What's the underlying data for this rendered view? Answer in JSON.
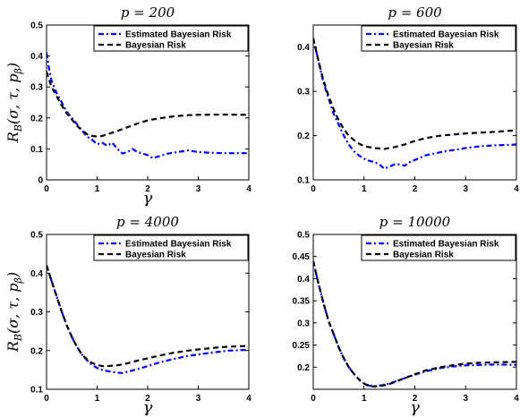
{
  "chart_data": [
    {
      "type": "line",
      "title": "p = 200",
      "xlabel": "γ",
      "ylabel": "R_B(σ, τ, p_β)",
      "xlim": [
        0,
        4
      ],
      "ylim": [
        0,
        0.5
      ],
      "xticks": [
        "0",
        "1",
        "2",
        "3",
        "4"
      ],
      "yticks": [
        "0",
        "0.1",
        "0.2",
        "0.3",
        "0.4",
        "0.5"
      ],
      "legend_position": "top-right",
      "series": [
        {
          "name": "Estimated Bayesian Risk",
          "color": "#0000ff",
          "style": "dashdot",
          "x": [
            0.0,
            0.05,
            0.1,
            0.2,
            0.3,
            0.4,
            0.5,
            0.6,
            0.7,
            0.8,
            0.9,
            1.0,
            1.1,
            1.2,
            1.3,
            1.4,
            1.5,
            1.6,
            1.7,
            1.8,
            1.9,
            2.0,
            2.1,
            2.2,
            2.4,
            2.6,
            2.8,
            3.0,
            3.2,
            3.5,
            4.0
          ],
          "y": [
            0.41,
            0.36,
            0.32,
            0.28,
            0.25,
            0.22,
            0.2,
            0.18,
            0.16,
            0.14,
            0.13,
            0.115,
            0.12,
            0.11,
            0.12,
            0.1,
            0.085,
            0.09,
            0.1,
            0.09,
            0.085,
            0.08,
            0.07,
            0.075,
            0.085,
            0.09,
            0.095,
            0.09,
            0.088,
            0.086,
            0.086
          ]
        },
        {
          "name": "Bayesian Risk",
          "color": "#000000",
          "style": "dashed",
          "x": [
            0.0,
            0.1,
            0.2,
            0.3,
            0.4,
            0.5,
            0.6,
            0.7,
            0.8,
            0.9,
            1.0,
            1.1,
            1.2,
            1.4,
            1.6,
            1.8,
            2.0,
            2.2,
            2.5,
            2.8,
            3.0,
            3.5,
            4.0
          ],
          "y": [
            0.35,
            0.3,
            0.27,
            0.24,
            0.215,
            0.195,
            0.175,
            0.16,
            0.148,
            0.142,
            0.14,
            0.142,
            0.147,
            0.158,
            0.17,
            0.182,
            0.192,
            0.198,
            0.205,
            0.209,
            0.21,
            0.211,
            0.21
          ]
        }
      ]
    },
    {
      "type": "line",
      "title": "p = 600",
      "xlabel": "",
      "ylabel": "",
      "xlim": [
        0,
        4
      ],
      "ylim": [
        0.1,
        0.45
      ],
      "xticks": [
        "0",
        "1",
        "2",
        "3",
        "4"
      ],
      "yticks": [
        "0.1",
        "0.2",
        "0.3",
        "0.4"
      ],
      "legend_position": "top-right",
      "series": [
        {
          "name": "Estimated Bayesian Risk",
          "color": "#0000ff",
          "style": "dashdot",
          "x": [
            0.0,
            0.1,
            0.2,
            0.3,
            0.4,
            0.5,
            0.6,
            0.7,
            0.8,
            0.9,
            1.0,
            1.1,
            1.2,
            1.3,
            1.4,
            1.5,
            1.6,
            1.7,
            1.8,
            1.9,
            2.0,
            2.2,
            2.4,
            2.6,
            2.8,
            3.0,
            3.3,
            3.6,
            4.0
          ],
          "y": [
            0.42,
            0.37,
            0.32,
            0.285,
            0.25,
            0.225,
            0.2,
            0.18,
            0.165,
            0.155,
            0.148,
            0.143,
            0.14,
            0.135,
            0.125,
            0.13,
            0.135,
            0.135,
            0.132,
            0.14,
            0.145,
            0.155,
            0.16,
            0.165,
            0.168,
            0.172,
            0.176,
            0.178,
            0.18
          ]
        },
        {
          "name": "Bayesian Risk",
          "color": "#000000",
          "style": "dashed",
          "x": [
            0.0,
            0.1,
            0.2,
            0.3,
            0.4,
            0.5,
            0.6,
            0.7,
            0.8,
            0.9,
            1.0,
            1.2,
            1.4,
            1.6,
            1.8,
            2.0,
            2.2,
            2.5,
            2.8,
            3.0,
            3.5,
            4.0
          ],
          "y": [
            0.42,
            0.37,
            0.325,
            0.29,
            0.26,
            0.235,
            0.215,
            0.2,
            0.19,
            0.182,
            0.176,
            0.172,
            0.17,
            0.174,
            0.18,
            0.188,
            0.194,
            0.2,
            0.203,
            0.205,
            0.208,
            0.212
          ]
        }
      ]
    },
    {
      "type": "line",
      "title": "p = 4000",
      "xlabel": "γ",
      "ylabel": "R_B(σ, τ, p_β)",
      "xlim": [
        0,
        4
      ],
      "ylim": [
        0.1,
        0.5
      ],
      "xticks": [
        "0",
        "1",
        "2",
        "3",
        "4"
      ],
      "yticks": [
        "0.1",
        "0.2",
        "0.3",
        "0.4",
        "0.5"
      ],
      "legend_position": "top-right",
      "series": [
        {
          "name": "Estimated Bayesian Risk",
          "color": "#0000ff",
          "style": "dashdot",
          "x": [
            0.0,
            0.1,
            0.2,
            0.3,
            0.4,
            0.5,
            0.6,
            0.7,
            0.8,
            0.9,
            1.0,
            1.1,
            1.2,
            1.3,
            1.4,
            1.5,
            1.6,
            1.8,
            2.0,
            2.2,
            2.5,
            2.8,
            3.0,
            3.3,
            3.6,
            4.0
          ],
          "y": [
            0.42,
            0.38,
            0.34,
            0.3,
            0.265,
            0.235,
            0.21,
            0.19,
            0.175,
            0.163,
            0.155,
            0.15,
            0.147,
            0.145,
            0.143,
            0.142,
            0.145,
            0.152,
            0.16,
            0.168,
            0.178,
            0.186,
            0.19,
            0.195,
            0.2,
            0.202
          ]
        },
        {
          "name": "Bayesian Risk",
          "color": "#000000",
          "style": "dashed",
          "x": [
            0.0,
            0.1,
            0.2,
            0.3,
            0.4,
            0.5,
            0.6,
            0.7,
            0.8,
            0.9,
            1.0,
            1.1,
            1.2,
            1.4,
            1.6,
            1.8,
            2.0,
            2.2,
            2.5,
            2.8,
            3.0,
            3.3,
            3.6,
            4.0
          ],
          "y": [
            0.42,
            0.38,
            0.34,
            0.3,
            0.265,
            0.235,
            0.21,
            0.19,
            0.177,
            0.168,
            0.163,
            0.16,
            0.16,
            0.162,
            0.167,
            0.174,
            0.18,
            0.186,
            0.194,
            0.2,
            0.203,
            0.207,
            0.21,
            0.212
          ]
        }
      ]
    },
    {
      "type": "line",
      "title": "p = 10000",
      "xlabel": "γ",
      "ylabel": "",
      "xlim": [
        0,
        4
      ],
      "ylim": [
        0.15,
        0.5
      ],
      "xticks": [
        "0",
        "1",
        "2",
        "3",
        "4"
      ],
      "yticks": [
        "0.2",
        "0.25",
        "0.3",
        "0.35",
        "0.4",
        "0.45",
        "0.5"
      ],
      "legend_position": "top-right",
      "series": [
        {
          "name": "Estimated Bayesian Risk",
          "color": "#0000ff",
          "style": "dashdot",
          "x": [
            0.0,
            0.1,
            0.2,
            0.3,
            0.4,
            0.5,
            0.6,
            0.7,
            0.8,
            0.9,
            1.0,
            1.1,
            1.2,
            1.3,
            1.4,
            1.5,
            1.6,
            1.8,
            2.0,
            2.2,
            2.5,
            2.8,
            3.0,
            3.3,
            3.6,
            4.0
          ],
          "y": [
            0.44,
            0.39,
            0.345,
            0.305,
            0.275,
            0.245,
            0.22,
            0.2,
            0.185,
            0.172,
            0.163,
            0.158,
            0.157,
            0.158,
            0.16,
            0.163,
            0.167,
            0.175,
            0.183,
            0.19,
            0.198,
            0.202,
            0.204,
            0.205,
            0.206,
            0.205
          ]
        },
        {
          "name": "Bayesian Risk",
          "color": "#000000",
          "style": "dashed",
          "x": [
            0.0,
            0.1,
            0.2,
            0.3,
            0.4,
            0.5,
            0.6,
            0.7,
            0.8,
            0.9,
            1.0,
            1.1,
            1.2,
            1.3,
            1.4,
            1.5,
            1.6,
            1.8,
            2.0,
            2.2,
            2.5,
            2.8,
            3.0,
            3.3,
            3.6,
            4.0
          ],
          "y": [
            0.44,
            0.39,
            0.345,
            0.305,
            0.275,
            0.245,
            0.22,
            0.2,
            0.185,
            0.172,
            0.163,
            0.157,
            0.156,
            0.157,
            0.159,
            0.162,
            0.166,
            0.175,
            0.184,
            0.192,
            0.2,
            0.205,
            0.208,
            0.21,
            0.211,
            0.212
          ]
        }
      ]
    }
  ]
}
